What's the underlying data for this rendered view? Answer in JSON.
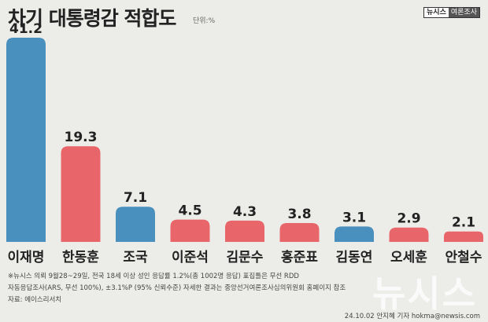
{
  "title": "차기 대통령감 적합도",
  "unit": "단위:%",
  "brand": {
    "left": "뉴시스",
    "right": "여론조사"
  },
  "notes": [
    "※뉴시스 의뢰 9월28~29일, 전국 18세 이상 성인 응답률 1.2%(총 1002명 응답) 표집틀은 무선 RDD",
    "자동응답조사(ARS, 무선 100%), ±3.1%P (95% 신뢰수준) 자세한 결과는 중앙선거여론조사심의위원회 홈페이지 참조",
    "자료: 에이스리서치"
  ],
  "watermark": "뉴시스",
  "credit": "24.10.02 안지혜 기자 hokma@newsis.com",
  "colors": {
    "blue": "#4a90bf",
    "red": "#e8666a"
  },
  "chart_data": {
    "type": "bar",
    "title": "차기 대통령감 적합도",
    "categories": [
      "이재명",
      "한동훈",
      "조국",
      "이준석",
      "김문수",
      "홍준표",
      "김동연",
      "오세훈",
      "안철수"
    ],
    "values": [
      41.2,
      19.3,
      7.1,
      4.5,
      4.3,
      3.8,
      3.1,
      2.9,
      2.1
    ],
    "bar_colors": [
      "blue",
      "red",
      "blue",
      "red",
      "red",
      "red",
      "blue",
      "red",
      "red"
    ],
    "ylim": [
      0,
      41.2
    ],
    "grid": false
  }
}
